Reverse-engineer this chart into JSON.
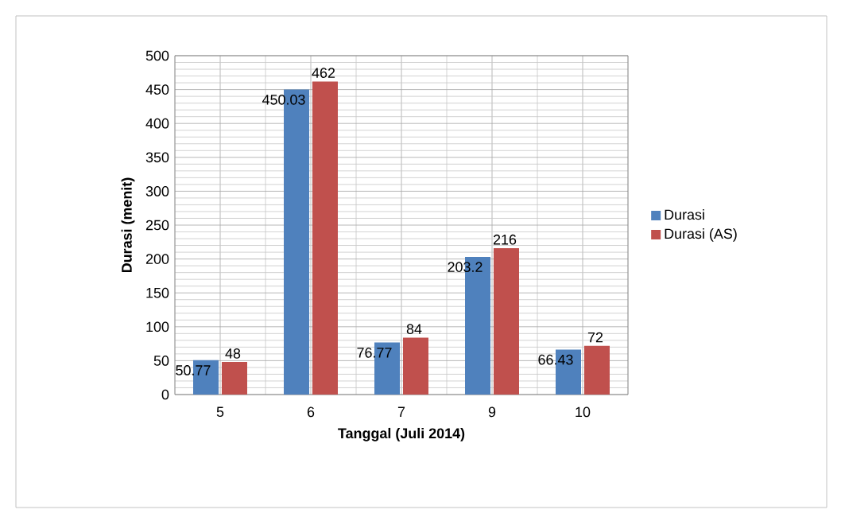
{
  "chart_data": {
    "type": "bar",
    "xlabel": "Tanggal  (Juli 2014)",
    "ylabel": "Durasi (menit)",
    "categories": [
      "5",
      "6",
      "7",
      "9",
      "10"
    ],
    "series": [
      {
        "name": "Durasi",
        "color": "#4f81bd",
        "values": [
          50.77,
          450.03,
          76.77,
          203.2,
          66.43
        ]
      },
      {
        "name": "Durasi (AS)",
        "color": "#c0504d",
        "values": [
          48,
          462,
          84,
          216,
          72
        ]
      }
    ],
    "ylim": [
      0,
      500
    ],
    "yticks": [
      0,
      50,
      100,
      150,
      200,
      250,
      300,
      350,
      400,
      450,
      500
    ],
    "grid": true,
    "legend": "right",
    "data_labels": true
  }
}
